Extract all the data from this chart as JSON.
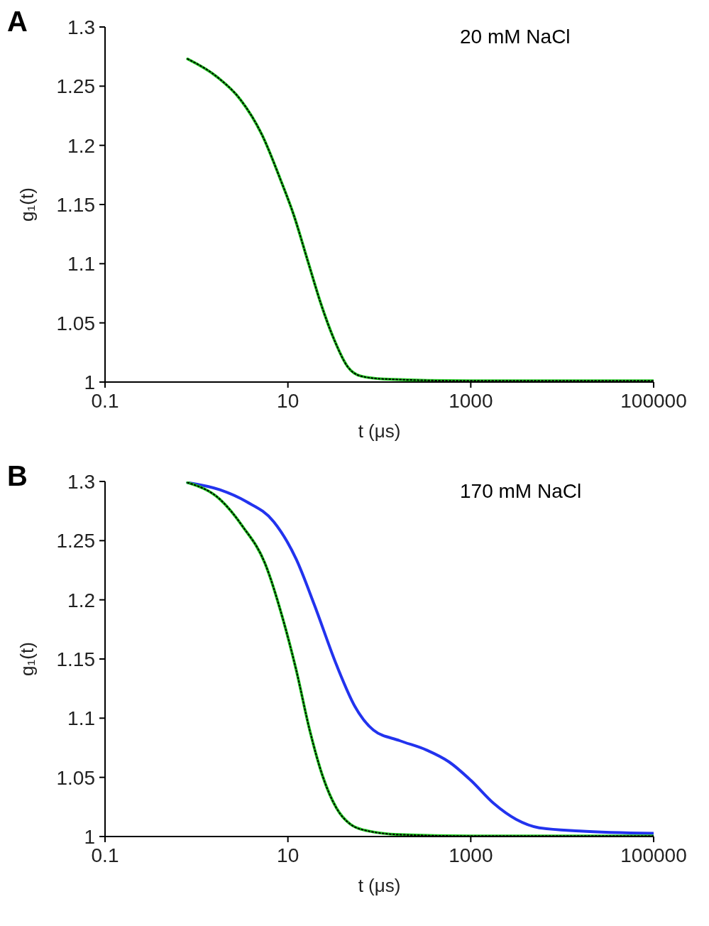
{
  "chart_data": [
    {
      "type": "line",
      "title": "A",
      "annotations": [
        "20 mM NaCl"
      ],
      "xlabel": "t (μs)",
      "ylabel": "g₁(t)",
      "log": "x",
      "xlim": [
        0.1,
        100000
      ],
      "xticks": [
        0.1,
        10,
        1000,
        100000
      ],
      "ylim": [
        1,
        1.3
      ],
      "yticks": [
        1,
        1.05,
        1.1,
        1.15,
        1.2,
        1.25,
        1.3
      ],
      "grid": false,
      "legend": false,
      "marker": "none",
      "x": [
        0.8,
        1.7,
        3.0,
        5.2,
        8.3,
        11.6,
        16.4,
        23,
        32,
        45,
        63,
        112,
        1000,
        100000
      ],
      "series": [
        {
          "color": "#22cc22",
          "line_style": "solid",
          "values": [
            1.273,
            1.2575,
            1.239,
            1.209,
            1.171,
            1.141,
            1.103,
            1.066,
            1.036,
            1.013,
            1.005,
            1.0026,
            1.001,
            1.001
          ]
        },
        {
          "color": "#000000",
          "line_style": "dotted",
          "values": [
            1.273,
            1.2575,
            1.239,
            1.209,
            1.171,
            1.141,
            1.103,
            1.066,
            1.036,
            1.013,
            1.005,
            1.0026,
            1.001,
            1.001
          ]
        }
      ]
    },
    {
      "type": "line",
      "title": "B",
      "annotations": [
        "170 mM NaCl"
      ],
      "xlabel": "t (μs)",
      "ylabel": "g₁(t)",
      "log": "x",
      "xlim": [
        0.1,
        100000
      ],
      "xticks": [
        0.1,
        10,
        1000,
        100000
      ],
      "ylim": [
        1,
        1.3
      ],
      "yticks": [
        1,
        1.05,
        1.1,
        1.15,
        1.2,
        1.25,
        1.3
      ],
      "grid": false,
      "legend": false,
      "marker": "none",
      "x": [
        0.8,
        1.8,
        3.2,
        5.6,
        8.8,
        12.3,
        17.3,
        24,
        34,
        48,
        75,
        167,
        1000,
        100000
      ],
      "series": [
        {
          "color": "#2233ee",
          "line_style": "solid",
          "x": [
            0.8,
            1.8,
            3.5,
            7,
            12.3,
            19.5,
            34,
            54,
            86,
            167,
            330,
            580,
            1000,
            1780,
            3150,
            5600,
            15600,
            100000
          ],
          "values": [
            1.299,
            1.293,
            1.283,
            1.266,
            1.2345,
            1.1956,
            1.145,
            1.11,
            1.09,
            1.081,
            1.073,
            1.063,
            1.0475,
            1.028,
            1.0144,
            1.0074,
            1.0047,
            1.0027
          ]
        },
        {
          "color": "#22cc22",
          "line_style": "solid",
          "values": [
            1.299,
            1.285,
            1.262,
            1.231,
            1.184,
            1.141,
            1.09,
            1.051,
            1.024,
            1.0105,
            1.0047,
            1.0016,
            1.0004,
            1.0004
          ]
        },
        {
          "color": "#000000",
          "line_style": "dotted",
          "values": [
            1.299,
            1.285,
            1.262,
            1.231,
            1.184,
            1.141,
            1.09,
            1.051,
            1.024,
            1.0105,
            1.0047,
            1.0016,
            1.0004,
            1.0004
          ]
        }
      ]
    }
  ]
}
